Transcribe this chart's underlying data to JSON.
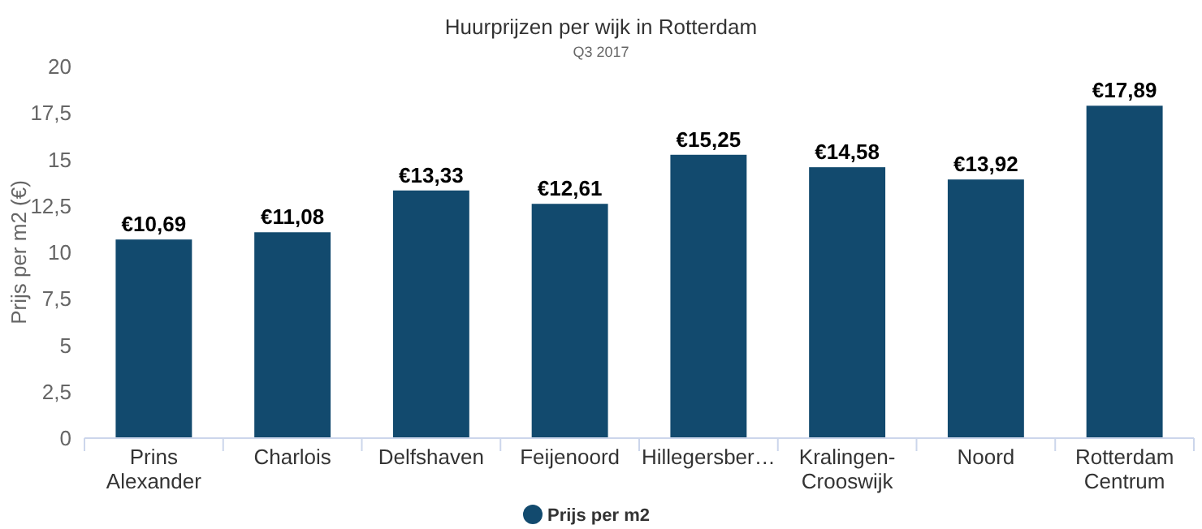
{
  "chart_data": {
    "type": "bar",
    "title": "Huurprijzen per wijk in Rotterdam",
    "subtitle": "Q3 2017",
    "ylabel": "Prijs per m2 (€)",
    "categories": [
      "Prins Alexander",
      "Charlois",
      "Delfshaven",
      "Feijenoord",
      "Hillegersber…",
      "Kralingen-Crooswijk",
      "Noord",
      "Rotterdam Centrum"
    ],
    "series": [
      {
        "name": "Prijs per m2",
        "color": "#124a6e",
        "values": [
          10.69,
          11.08,
          13.33,
          12.61,
          15.25,
          14.58,
          13.92,
          17.89
        ],
        "value_labels": [
          "€10,69",
          "€11,08",
          "€13,33",
          "€12,61",
          "€15,25",
          "€14,58",
          "€13,92",
          "€17,89"
        ]
      }
    ],
    "ylim": [
      0,
      20
    ],
    "yticks": [
      0,
      {
        "value": 2.5,
        "label": "2,5"
      },
      5,
      {
        "value": 7.5,
        "label": "7,5"
      },
      10,
      {
        "value": 12.5,
        "label": "12,5"
      },
      15,
      {
        "value": 17.5,
        "label": "17,5"
      },
      20
    ],
    "legend": "bottom",
    "grid": false
  }
}
